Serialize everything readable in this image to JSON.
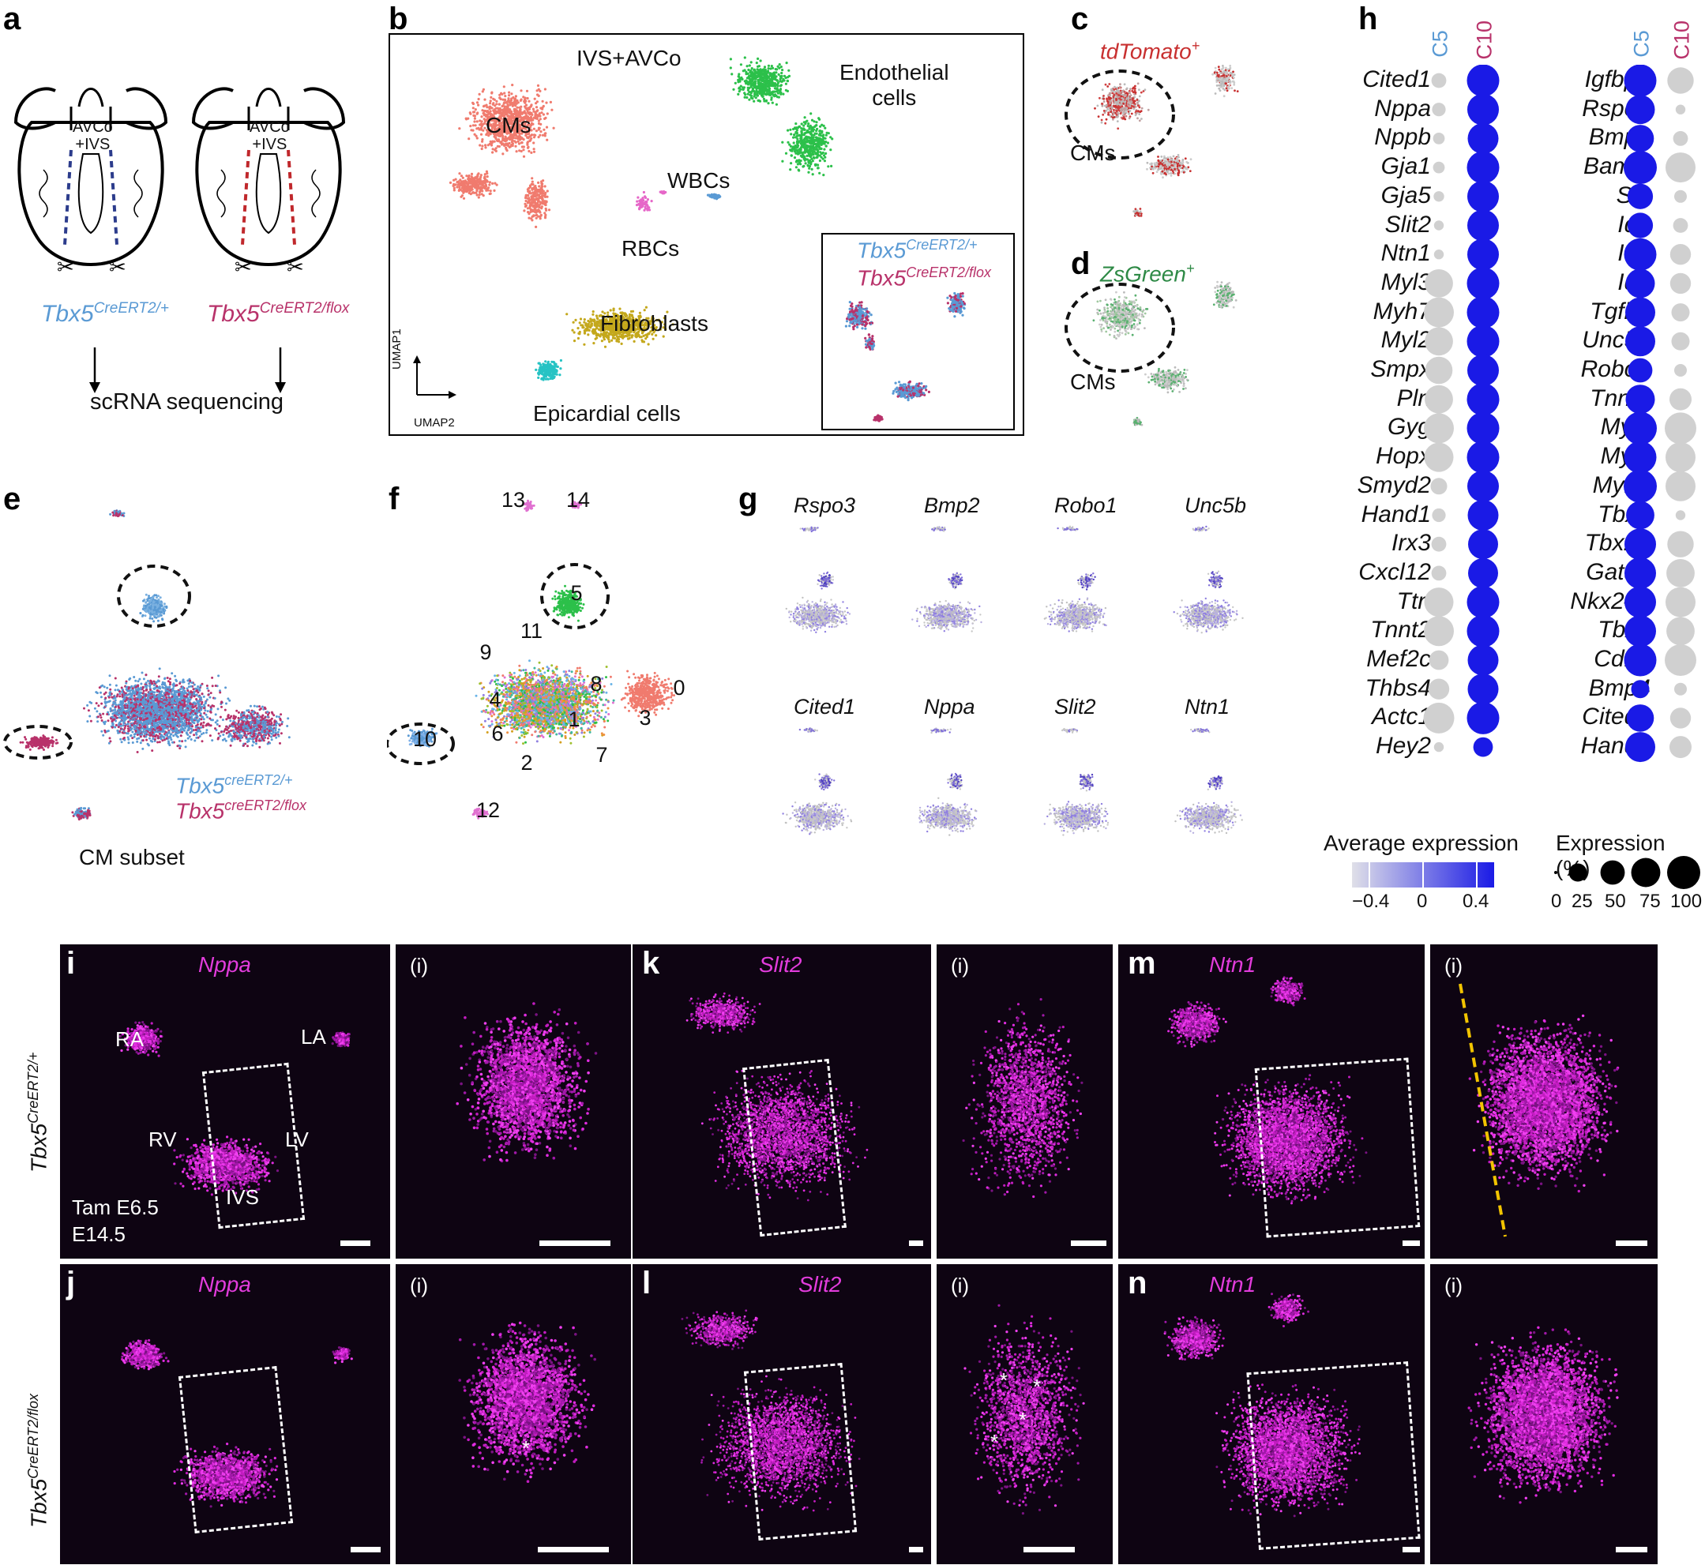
{
  "panels": {
    "a": {
      "letter": "a",
      "region_label_left": "AVCo\n+IVS",
      "region_label_left_1": "AVCo",
      "region_label_left_2": "+IVS",
      "region_label_right_1": "AVCo",
      "region_label_right_2": "+IVS",
      "genotype_left": "Tbx5",
      "genotype_left_sup": "CreERT2/+",
      "genotype_right": "Tbx5",
      "genotype_right_sup": "CreERT2/flox",
      "method": "scRNA sequencing",
      "colors": {
        "wt": "#5a9ad4",
        "mut": "#b8326a"
      }
    },
    "b": {
      "letter": "b",
      "title": "IVS+AVCo",
      "clusters": [
        "CMs",
        "Endothelial",
        "cells",
        "WBCs",
        "RBCs",
        "Fibroblasts",
        "Epicardial cells"
      ],
      "axis_y": "UMAP1",
      "axis_x": "UMAP2",
      "inset_wt": "Tbx5",
      "inset_wt_sup": "CreERT2/+",
      "inset_mut": "Tbx5",
      "inset_mut_sup": "CreERT2/flox",
      "colors": {
        "cms": "#f07b6e",
        "endo": "#2cc04a",
        "wbc": "#5a9ad4",
        "rbc": "#e667c8",
        "fib": "#c4a81c",
        "epi": "#27c3c4"
      }
    },
    "c": {
      "letter": "c",
      "marker": "tdTomato",
      "marker_sup": "+",
      "label": "CMs",
      "color": "#c83030"
    },
    "d": {
      "letter": "d",
      "marker": "ZsGreen",
      "marker_sup": "+",
      "label": "CMs",
      "color": "#2e8a46"
    },
    "e": {
      "letter": "e",
      "legend_wt": "Tbx5",
      "legend_wt_sup": "creERT2/+",
      "legend_mut": "Tbx5",
      "legend_mut_sup": "creERT2/flox",
      "caption": "CM subset"
    },
    "f": {
      "letter": "f",
      "cluster_ids": [
        "13",
        "14",
        "5",
        "9",
        "11",
        "8",
        "0",
        "4",
        "1",
        "3",
        "10",
        "6",
        "2",
        "7",
        "12"
      ]
    },
    "g": {
      "letter": "g",
      "genes": [
        "Rspo3",
        "Bmp2",
        "Robo1",
        "Unc5b",
        "Cited1",
        "Nppa",
        "Slit2",
        "Ntn1"
      ]
    },
    "h": {
      "letter": "h",
      "col_labels": [
        "C5",
        "C10"
      ],
      "col_colors": [
        "#5a9ad4",
        "#b8326a"
      ],
      "legend_avg_title": "Average expression",
      "legend_avg_ticks": [
        "−0.4",
        "0",
        "0.4"
      ],
      "legend_pct_title": "Expression (%)",
      "legend_pct_ticks": [
        "0",
        "25",
        "50",
        "75",
        "100"
      ],
      "colors": {
        "high": "#1a1ae6",
        "low": "#d0d0d0"
      }
    },
    "micro": {
      "i": {
        "letter": "i",
        "gene": "Nppa",
        "labels": [
          "RA",
          "LA",
          "RV",
          "LV",
          "IVS"
        ],
        "tam": "Tam E6.5",
        "stage": "E14.5"
      },
      "j": {
        "letter": "j",
        "gene": "Nppa"
      },
      "k": {
        "letter": "k",
        "gene": "Slit2"
      },
      "l": {
        "letter": "l",
        "gene": "Slit2"
      },
      "m": {
        "letter": "m",
        "gene": "Ntn1"
      },
      "n": {
        "letter": "n",
        "gene": "Ntn1"
      },
      "inset_label": "(i)",
      "row_label_top": "Tbx5",
      "row_label_top_sup": "CreERT2/+",
      "row_label_bottom": "Tbx5",
      "row_label_bottom_sup": "CreERT2/flox"
    }
  },
  "chart_data": {
    "type": "scatter",
    "title": "",
    "genes_left": [
      "Cited1",
      "Nppa",
      "Nppb",
      "Gja1",
      "Gja5",
      "Slit2",
      "Ntn1",
      "Myl3",
      "Myh7",
      "Myl2",
      "Smpx",
      "Pln",
      "Gyg",
      "Hopx",
      "Smyd2",
      "Hand1",
      "Irx3",
      "Cxcl12",
      "Ttn",
      "Tnnt2",
      "Mef2c",
      "Thbs4",
      "Actc1",
      "Hey2"
    ],
    "genes_right": [
      "Igfbp5",
      "Rspo3",
      "Bmp2",
      "Bambi",
      "Sln",
      "Id1",
      "Id2",
      "Id3",
      "Tgfb2",
      "Unc5b",
      "Robo1",
      "Tnnt1",
      "Myl7",
      "Myl1",
      "Myh6",
      "Tbx3",
      "Tbx20",
      "Gata6",
      "Nkx2–5",
      "Tbx5",
      "Cdh2",
      "Bmp4",
      "Cited2",
      "Hand2"
    ],
    "series": [
      {
        "name": "C5",
        "group": "left",
        "pct": [
          15,
          12,
          8,
          8,
          6,
          5,
          5,
          70,
          80,
          70,
          65,
          70,
          80,
          75,
          20,
          12,
          15,
          15,
          75,
          80,
          30,
          35,
          85,
          5
        ],
        "avg": [
          -0.4,
          -0.4,
          -0.4,
          -0.4,
          -0.4,
          -0.4,
          -0.4,
          -0.4,
          -0.4,
          -0.4,
          -0.4,
          -0.4,
          -0.4,
          -0.4,
          -0.4,
          -0.4,
          -0.4,
          -0.4,
          -0.4,
          -0.4,
          -0.4,
          -0.4,
          -0.4,
          -0.4
        ]
      },
      {
        "name": "C10",
        "group": "left",
        "pct": [
          95,
          90,
          85,
          95,
          90,
          90,
          90,
          95,
          95,
          95,
          90,
          95,
          95,
          95,
          90,
          85,
          80,
          80,
          95,
          95,
          85,
          85,
          95,
          30
        ],
        "avg": [
          0.4,
          0.4,
          0.4,
          0.4,
          0.4,
          0.4,
          0.4,
          0.4,
          0.4,
          0.4,
          0.4,
          0.4,
          0.4,
          0.4,
          0.4,
          0.4,
          0.4,
          0.4,
          0.4,
          0.4,
          0.4,
          0.4,
          0.4,
          0.4
        ]
      },
      {
        "name": "C5",
        "group": "right",
        "pct": [
          95,
          75,
          65,
          100,
          55,
          55,
          95,
          75,
          80,
          80,
          50,
          75,
          100,
          95,
          100,
          70,
          90,
          90,
          90,
          90,
          95,
          25,
          65,
          80
        ],
        "avg": [
          0.4,
          0.4,
          0.4,
          0.4,
          0.4,
          0.4,
          0.4,
          0.4,
          0.4,
          0.4,
          0.4,
          0.4,
          0.4,
          0.4,
          0.4,
          0.4,
          0.4,
          0.4,
          0.4,
          0.4,
          0.4,
          0.4,
          0.4,
          0.4
        ]
      },
      {
        "name": "C10",
        "group": "right",
        "pct": [
          60,
          5,
          15,
          80,
          10,
          15,
          35,
          35,
          25,
          25,
          10,
          40,
          90,
          80,
          80,
          5,
          60,
          70,
          80,
          70,
          90,
          10,
          35,
          40
        ],
        "avg": [
          -0.4,
          -0.4,
          -0.4,
          -0.4,
          -0.4,
          -0.4,
          -0.4,
          -0.4,
          -0.4,
          -0.4,
          -0.4,
          -0.4,
          -0.4,
          -0.4,
          -0.4,
          -0.4,
          -0.4,
          -0.4,
          -0.4,
          -0.4,
          -0.4,
          -0.4,
          -0.4,
          -0.4
        ]
      }
    ],
    "size_scale": [
      0,
      100
    ],
    "color_range": [
      -0.4,
      0.4
    ],
    "grid": false
  }
}
